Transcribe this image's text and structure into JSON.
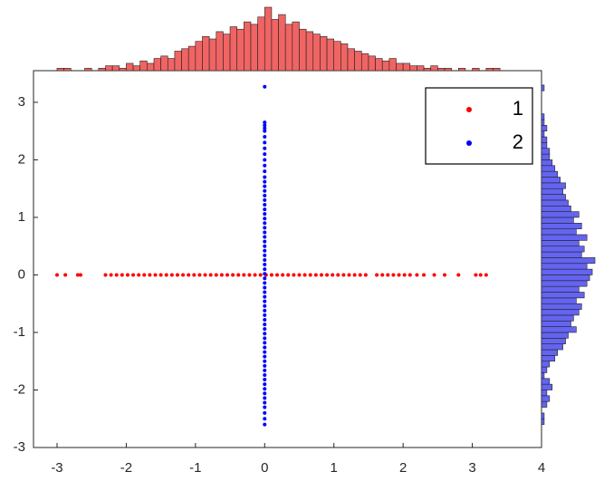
{
  "chart_data": {
    "type": "scatter",
    "xlim": [
      -3.34,
      4
    ],
    "ylim": [
      -3,
      3.55
    ],
    "xticks": [
      -3,
      -2,
      -1,
      0,
      1,
      2,
      3,
      4
    ],
    "yticks": [
      -3,
      -2,
      -1,
      0,
      1,
      2,
      3
    ],
    "legend": "northeast",
    "series": [
      {
        "name": "1",
        "color": "#ff0000",
        "x": [
          -3.0,
          -2.88,
          -2.7,
          -2.66,
          -2.3,
          -2.22,
          -2.14,
          -2.06,
          -1.98,
          -1.9,
          -1.82,
          -1.74,
          -1.66,
          -1.58,
          -1.5,
          -1.42,
          -1.34,
          -1.26,
          -1.18,
          -1.1,
          -1.02,
          -0.94,
          -0.86,
          -0.78,
          -0.7,
          -0.62,
          -0.54,
          -0.46,
          -0.38,
          -0.3,
          -0.22,
          -0.14,
          -0.06,
          0.02,
          0.1,
          0.18,
          0.26,
          0.34,
          0.42,
          0.5,
          0.58,
          0.66,
          0.74,
          0.82,
          0.9,
          0.98,
          1.06,
          1.14,
          1.22,
          1.3,
          1.38,
          1.46,
          1.62,
          1.7,
          1.78,
          1.86,
          1.94,
          2.02,
          2.1,
          2.2,
          2.3,
          2.45,
          2.6,
          2.8,
          3.05,
          3.12,
          3.2
        ],
        "y": [
          0,
          0,
          0,
          0,
          0,
          0,
          0,
          0,
          0,
          0,
          0,
          0,
          0,
          0,
          0,
          0,
          0,
          0,
          0,
          0,
          0,
          0,
          0,
          0,
          0,
          0,
          0,
          0,
          0,
          0,
          0,
          0,
          0,
          0,
          0,
          0,
          0,
          0,
          0,
          0,
          0,
          0,
          0,
          0,
          0,
          0,
          0,
          0,
          0,
          0,
          0,
          0,
          0,
          0,
          0,
          0,
          0,
          0,
          0,
          0,
          0,
          0,
          0,
          0,
          0,
          0,
          0
        ]
      },
      {
        "name": "2",
        "color": "#0000ff",
        "x": [
          0,
          0,
          0,
          0,
          0,
          0,
          0,
          0,
          0,
          0,
          0,
          0,
          0,
          0,
          0,
          0,
          0,
          0,
          0,
          0,
          0,
          0,
          0,
          0,
          0,
          0,
          0,
          0,
          0,
          0,
          0,
          0,
          0,
          0,
          0,
          0,
          0,
          0,
          0,
          0,
          0,
          0,
          0,
          0,
          0,
          0,
          0,
          0,
          0,
          0,
          0,
          0,
          0,
          0,
          0,
          0,
          0,
          0,
          0,
          0,
          0,
          0,
          0,
          0,
          0,
          0
        ],
        "y": [
          -2.6,
          -2.5,
          -2.4,
          -2.3,
          -2.22,
          -2.14,
          -2.06,
          -1.98,
          -1.9,
          -1.82,
          -1.74,
          -1.66,
          -1.58,
          -1.5,
          -1.42,
          -1.34,
          -1.26,
          -1.18,
          -1.1,
          -1.02,
          -0.94,
          -0.86,
          -0.78,
          -0.7,
          -0.62,
          -0.54,
          -0.46,
          -0.38,
          -0.3,
          -0.22,
          -0.14,
          -0.06,
          0.02,
          0.1,
          0.18,
          0.26,
          0.34,
          0.42,
          0.5,
          0.58,
          0.66,
          0.74,
          0.82,
          0.9,
          0.98,
          1.06,
          1.14,
          1.22,
          1.3,
          1.38,
          1.46,
          1.54,
          1.62,
          1.7,
          1.8,
          1.9,
          2.0,
          2.1,
          2.2,
          2.3,
          2.4,
          2.5,
          2.55,
          2.6,
          2.65,
          3.27
        ]
      }
    ],
    "marginal_x": {
      "color": "#f06464",
      "bins": [
        -3.0,
        -2.9,
        -2.8,
        -2.7,
        -2.6,
        -2.5,
        -2.4,
        -2.3,
        -2.2,
        -2.1,
        -2.0,
        -1.9,
        -1.8,
        -1.7,
        -1.6,
        -1.5,
        -1.4,
        -1.3,
        -1.2,
        -1.1,
        -1.0,
        -0.9,
        -0.8,
        -0.7,
        -0.6,
        -0.5,
        -0.4,
        -0.3,
        -0.2,
        -0.1,
        0,
        0.1,
        0.2,
        0.3,
        0.4,
        0.5,
        0.6,
        0.7,
        0.8,
        0.9,
        1.0,
        1.1,
        1.2,
        1.3,
        1.4,
        1.5,
        1.6,
        1.7,
        1.8,
        1.9,
        2.0,
        2.1,
        2.2,
        2.3,
        2.4,
        2.5,
        2.6,
        2.7,
        2.8,
        2.9,
        3.0,
        3.1,
        3.2,
        3.3,
        3.4
      ],
      "counts": [
        1,
        1,
        0,
        0,
        1,
        0,
        1,
        2,
        2,
        1,
        3,
        2,
        4,
        3,
        5,
        6,
        5,
        8,
        9,
        10,
        12,
        14,
        13,
        16,
        15,
        18,
        17,
        20,
        19,
        22,
        26,
        21,
        23,
        19,
        20,
        17,
        16,
        15,
        14,
        13,
        12,
        11,
        9,
        8,
        7,
        6,
        5,
        4,
        5,
        3,
        3,
        2,
        2,
        1,
        2,
        1,
        1,
        0,
        1,
        0,
        1,
        0,
        1,
        1
      ]
    },
    "marginal_y": {
      "color": "#6464f0",
      "bins": [
        -2.6,
        -2.5,
        -2.4,
        -2.3,
        -2.2,
        -2.1,
        -2.0,
        -1.9,
        -1.8,
        -1.7,
        -1.6,
        -1.5,
        -1.4,
        -1.3,
        -1.2,
        -1.1,
        -1.0,
        -0.9,
        -0.8,
        -0.7,
        -0.6,
        -0.5,
        -0.4,
        -0.3,
        -0.2,
        -0.1,
        0,
        0.1,
        0.2,
        0.3,
        0.4,
        0.5,
        0.6,
        0.7,
        0.8,
        0.9,
        1.0,
        1.1,
        1.2,
        1.3,
        1.4,
        1.5,
        1.6,
        1.7,
        1.8,
        1.9,
        2.0,
        2.1,
        2.2,
        2.3,
        2.4,
        2.5,
        2.6,
        2.7,
        2.8,
        2.9,
        3.0,
        3.1,
        3.2,
        3.3
      ],
      "counts": [
        1,
        1,
        0,
        2,
        3,
        2,
        4,
        3,
        1,
        2,
        3,
        5,
        6,
        8,
        9,
        10,
        13,
        11,
        12,
        14,
        15,
        13,
        16,
        14,
        17,
        18,
        19,
        17,
        20,
        15,
        16,
        14,
        17,
        13,
        15,
        12,
        14,
        11,
        10,
        9,
        8,
        9,
        7,
        6,
        5,
        4,
        3,
        3,
        2,
        2,
        1,
        2,
        1,
        1,
        0,
        0,
        0,
        0,
        1
      ]
    }
  }
}
